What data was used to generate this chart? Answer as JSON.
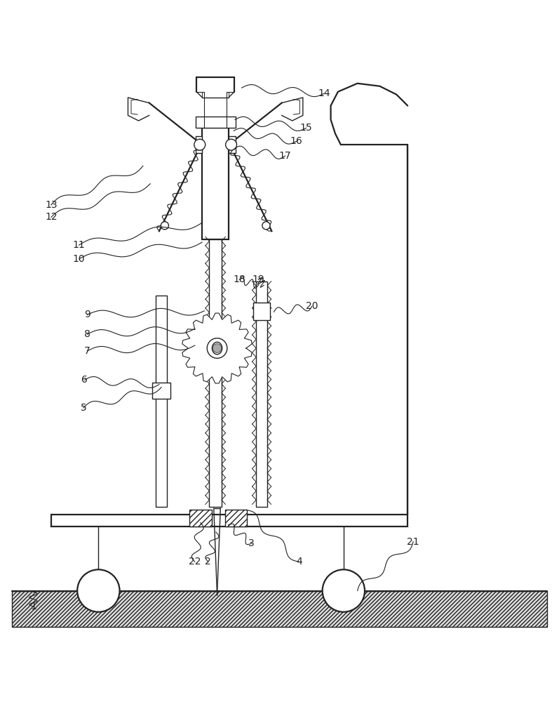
{
  "bg_color": "#ffffff",
  "line_color": "#222222",
  "label_color": "#222222",
  "fig_width": 7.97,
  "fig_height": 10.0
}
